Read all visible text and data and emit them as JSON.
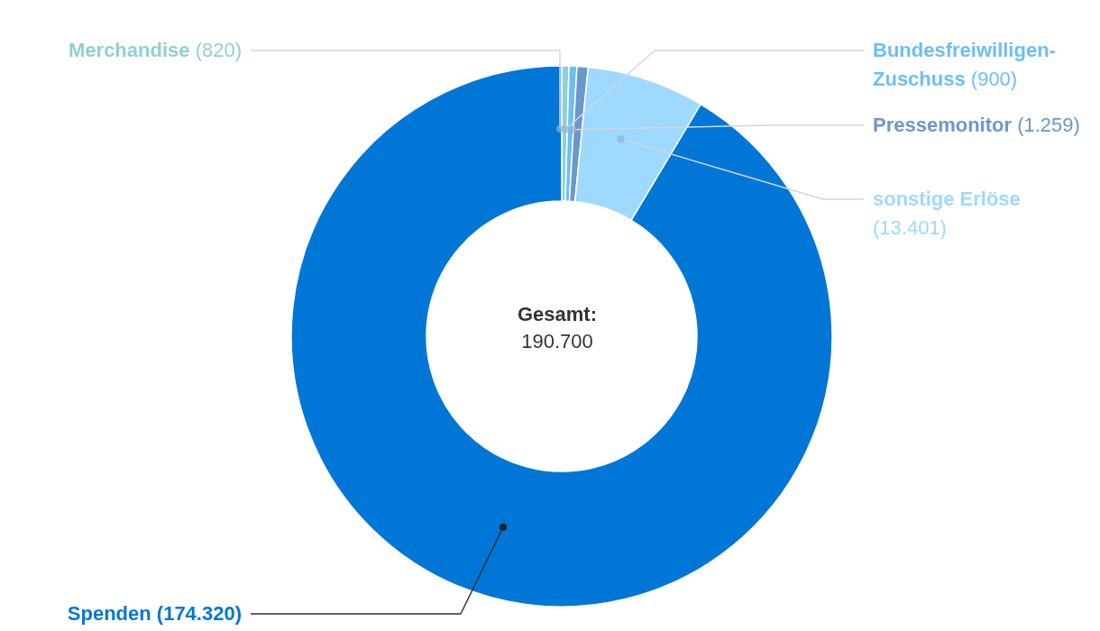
{
  "chart_data": {
    "type": "donut",
    "categories": [
      "Merchandise",
      "Bundesfreiwilligen-Zuschuss",
      "Pressemonitor",
      "sonstige Erlöse",
      "Spenden"
    ],
    "values": [
      820,
      900,
      1259,
      13401,
      174320
    ],
    "value_labels": [
      "(820)",
      "(900)",
      "(1.259)",
      "(13.401)",
      "(174.320)"
    ],
    "colors": [
      "#8fd0d4",
      "#6cbef5",
      "#6a98cc",
      "#9ed9ff",
      "#0077d6"
    ],
    "annotations": [
      "Gesamt:",
      "190.700"
    ],
    "legend": false
  }
}
